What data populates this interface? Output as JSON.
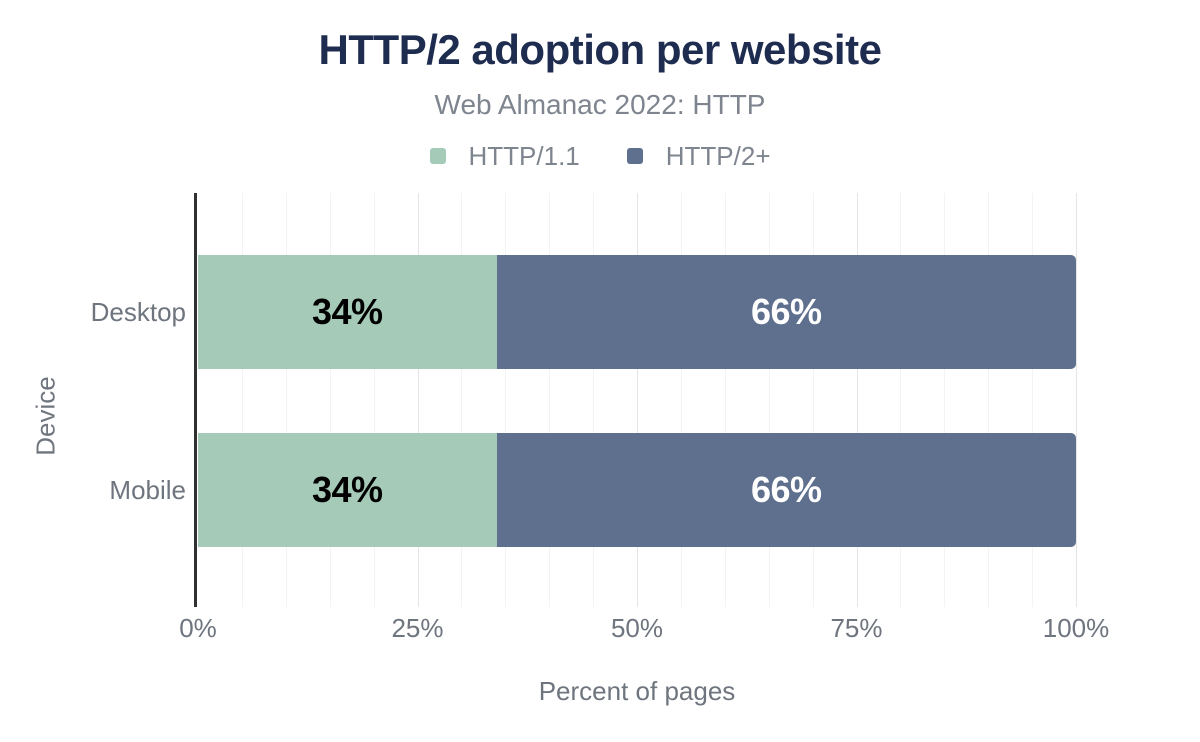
{
  "chart_data": {
    "type": "bar",
    "orientation": "horizontal",
    "stacked": true,
    "title": "HTTP/2 adoption per website",
    "subtitle": "Web Almanac 2022: HTTP",
    "categories": [
      "Desktop",
      "Mobile"
    ],
    "series": [
      {
        "name": "HTTP/1.1",
        "values": [
          34,
          34
        ],
        "labels": [
          "34%",
          "34%"
        ],
        "color": "#a6cab8",
        "label_color": "#000000"
      },
      {
        "name": "HTTP/2+",
        "values": [
          66,
          66
        ],
        "labels": [
          "66%",
          "66%"
        ],
        "color": "#5e708e",
        "label_color": "#ffffff"
      }
    ],
    "xlabel": "Percent of pages",
    "ylabel": "Device",
    "xlim": [
      0,
      100
    ],
    "x_ticks": [
      {
        "value": 0,
        "label": "0%"
      },
      {
        "value": 25,
        "label": "25%"
      },
      {
        "value": 50,
        "label": "50%"
      },
      {
        "value": 75,
        "label": "75%"
      },
      {
        "value": 100,
        "label": "100%"
      }
    ],
    "grid": {
      "minor_step": 5,
      "major_step": 25,
      "on": true
    },
    "legend_position": "top",
    "colors": {
      "title": "#1d2c4f",
      "subtitle_text": "#7e858f",
      "legend_text": "#7e858f",
      "axis_text": "#6f757e",
      "axis_line": "#303030",
      "grid_minor": "#f3f3f3",
      "grid_major": "#e5e5e5",
      "background": "#ffffff"
    }
  }
}
